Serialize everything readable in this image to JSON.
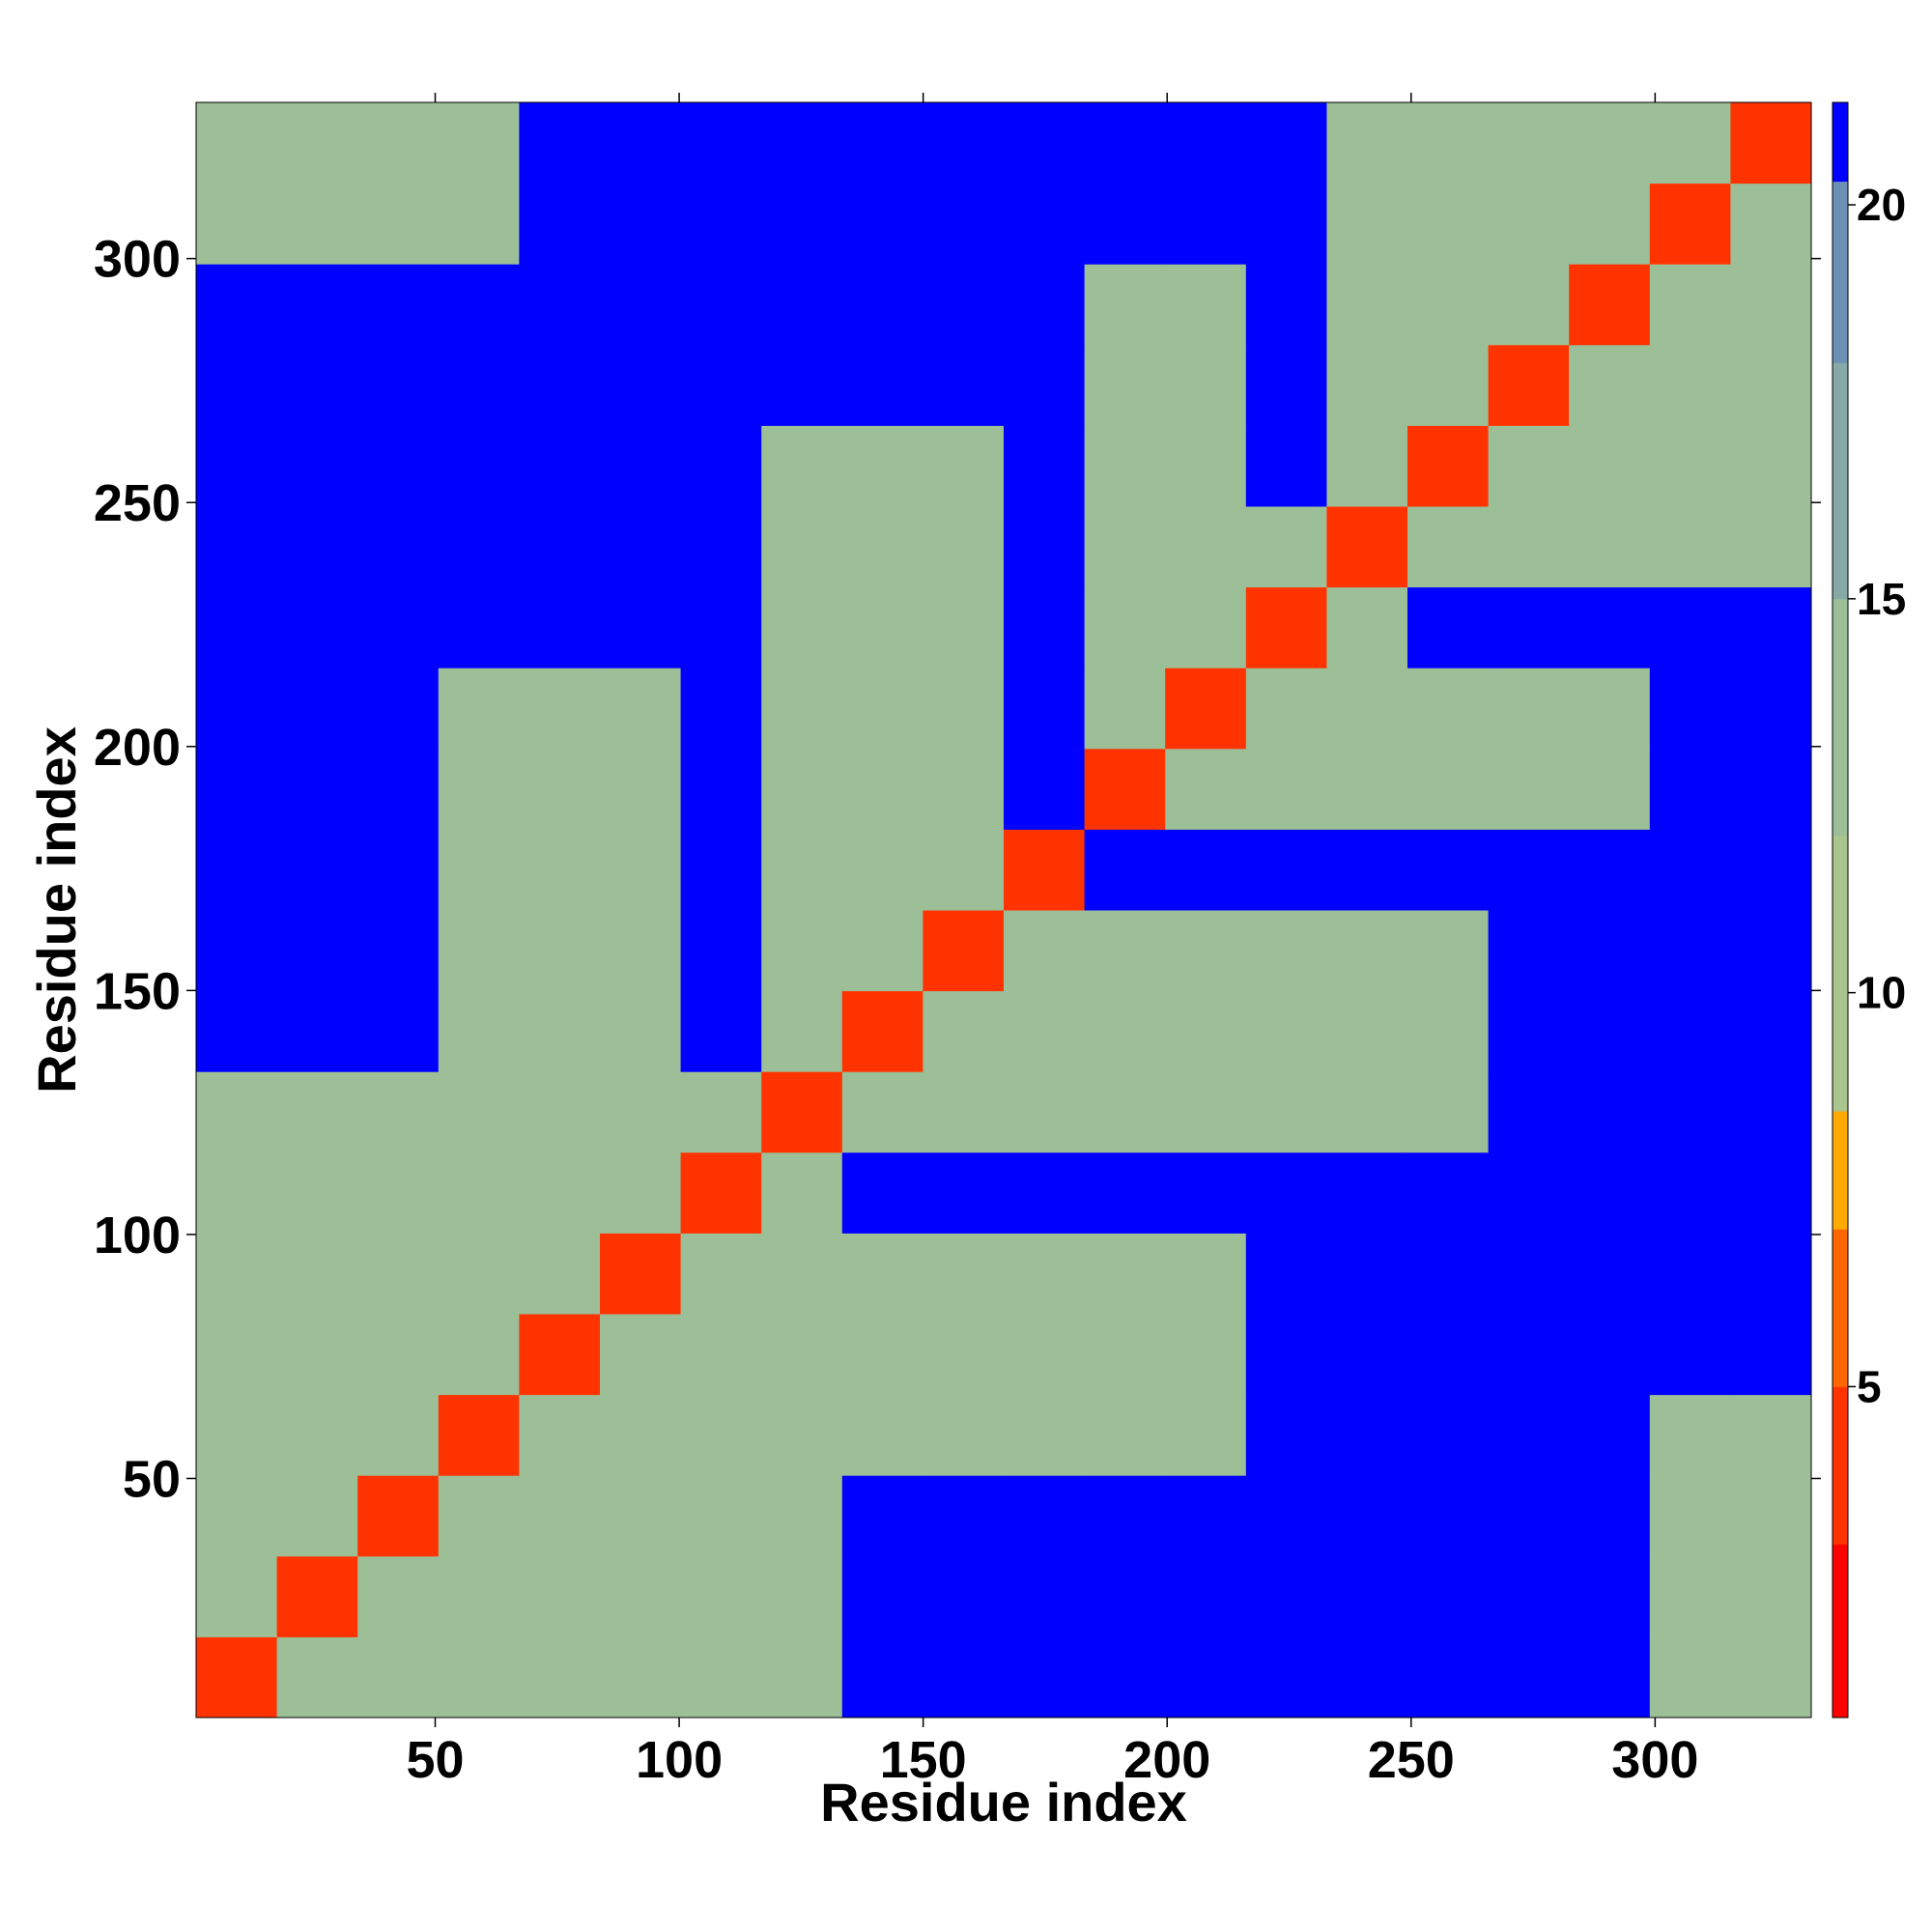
{
  "chart_data": {
    "type": "heatmap",
    "xlabel": "Residue index",
    "ylabel": "Residue index",
    "xlim": [
      1,
      332
    ],
    "ylim": [
      1,
      332
    ],
    "xticks": [
      50,
      100,
      150,
      200,
      250,
      300
    ],
    "yticks": [
      50,
      100,
      150,
      200,
      250,
      300
    ],
    "zlim": [
      0.8,
      21.3
    ],
    "zticks": [
      5,
      10,
      15,
      20
    ],
    "color_levels": [
      [
        0.8,
        "#ff0000"
      ],
      [
        3,
        "#ff3300"
      ],
      [
        5,
        "#ff6600"
      ],
      [
        7,
        "#ffaa00"
      ],
      [
        8.5,
        "#a9c48c"
      ],
      [
        12,
        "#9cbf98"
      ],
      [
        15,
        "#86a9a8"
      ],
      [
        18,
        "#6c8fb5"
      ],
      [
        20.3,
        "#0000ff"
      ]
    ],
    "values": [
      [
        3,
        13,
        13,
        13,
        13,
        13,
        13,
        13,
        21,
        21,
        21,
        21,
        21,
        21,
        21,
        21,
        21,
        21,
        13,
        13
      ],
      [
        13,
        3,
        13,
        13,
        13,
        13,
        13,
        13,
        21,
        21,
        21,
        21,
        21,
        21,
        21,
        21,
        21,
        21,
        13,
        13
      ],
      [
        13,
        13,
        3,
        13,
        13,
        13,
        13,
        13,
        21,
        21,
        21,
        21,
        21,
        21,
        21,
        21,
        21,
        21,
        13,
        13
      ],
      [
        13,
        13,
        13,
        3,
        13,
        13,
        13,
        13,
        13,
        13,
        13,
        13,
        13,
        21,
        21,
        21,
        21,
        21,
        13,
        13
      ],
      [
        13,
        13,
        13,
        13,
        3,
        13,
        13,
        13,
        13,
        13,
        13,
        13,
        13,
        21,
        21,
        21,
        21,
        21,
        21,
        21
      ],
      [
        13,
        13,
        13,
        13,
        13,
        3,
        13,
        13,
        13,
        13,
        13,
        13,
        13,
        21,
        21,
        21,
        21,
        21,
        21,
        21
      ],
      [
        13,
        13,
        13,
        13,
        13,
        13,
        3,
        13,
        21,
        21,
        21,
        21,
        21,
        21,
        21,
        21,
        21,
        21,
        21,
        21
      ],
      [
        13,
        13,
        13,
        13,
        13,
        13,
        13,
        3,
        13,
        13,
        13,
        13,
        13,
        13,
        13,
        13,
        21,
        21,
        21,
        21
      ],
      [
        21,
        21,
        21,
        13,
        13,
        13,
        21,
        13,
        3,
        13,
        13,
        13,
        13,
        13,
        13,
        13,
        21,
        21,
        21,
        21
      ],
      [
        21,
        21,
        21,
        13,
        13,
        13,
        21,
        13,
        13,
        3,
        13,
        13,
        13,
        13,
        13,
        13,
        21,
        21,
        21,
        21
      ],
      [
        21,
        21,
        21,
        13,
        13,
        13,
        21,
        13,
        13,
        13,
        3,
        21,
        21,
        21,
        21,
        21,
        21,
        21,
        21,
        21
      ],
      [
        21,
        21,
        21,
        13,
        13,
        13,
        21,
        13,
        13,
        13,
        21,
        3,
        13,
        13,
        13,
        13,
        13,
        13,
        21,
        21
      ],
      [
        21,
        21,
        21,
        13,
        13,
        13,
        21,
        13,
        13,
        13,
        21,
        13,
        3,
        13,
        13,
        13,
        13,
        13,
        21,
        21
      ],
      [
        21,
        21,
        21,
        21,
        21,
        21,
        21,
        13,
        13,
        13,
        21,
        13,
        13,
        3,
        13,
        21,
        21,
        21,
        21,
        21
      ],
      [
        21,
        21,
        21,
        21,
        21,
        21,
        21,
        13,
        13,
        13,
        21,
        13,
        13,
        13,
        3,
        13,
        13,
        13,
        13,
        13
      ],
      [
        21,
        21,
        21,
        21,
        21,
        21,
        21,
        13,
        13,
        13,
        21,
        13,
        13,
        21,
        13,
        3,
        13,
        13,
        13,
        13
      ],
      [
        21,
        21,
        21,
        21,
        21,
        21,
        21,
        21,
        21,
        21,
        21,
        13,
        13,
        21,
        13,
        13,
        3,
        13,
        13,
        13
      ],
      [
        21,
        21,
        21,
        21,
        21,
        21,
        21,
        21,
        21,
        21,
        21,
        13,
        13,
        21,
        13,
        13,
        13,
        3,
        13,
        13
      ],
      [
        13,
        13,
        13,
        13,
        21,
        21,
        21,
        21,
        21,
        21,
        21,
        21,
        21,
        21,
        13,
        13,
        13,
        13,
        3,
        13
      ],
      [
        13,
        13,
        13,
        13,
        21,
        21,
        21,
        21,
        21,
        21,
        21,
        21,
        21,
        21,
        13,
        13,
        13,
        13,
        13,
        3
      ]
    ]
  }
}
